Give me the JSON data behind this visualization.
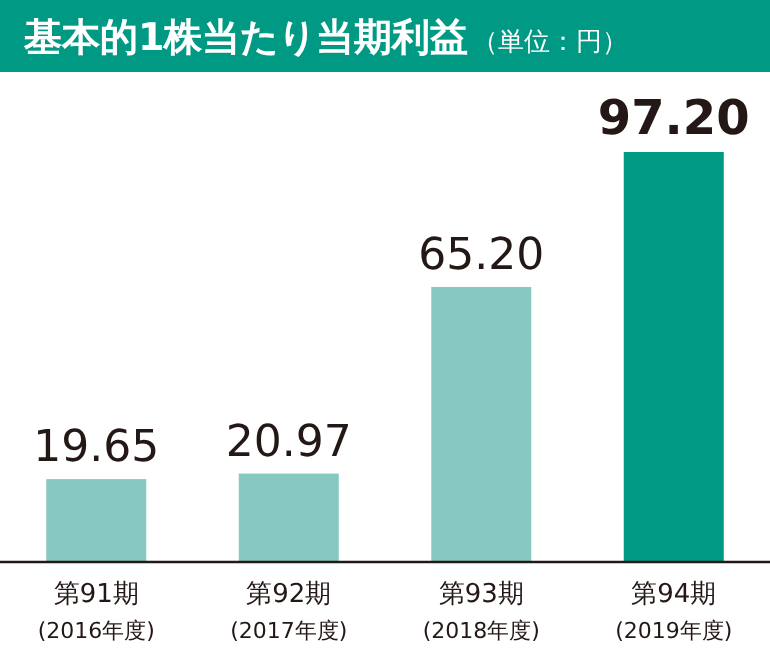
{
  "chart_data": {
    "type": "bar",
    "title": "基本的1株当たり当期利益",
    "subtitle": "（単位：円）",
    "categories": [
      "第91期\n(2016年度)",
      "第92期\n(2017年度)",
      "第93期\n(2018年度)",
      "第94期\n(2019年度)"
    ],
    "values": [
      19.65,
      20.97,
      65.2,
      97.2
    ],
    "value_labels": [
      "19.65",
      "20.97",
      "65.20",
      "97.20"
    ],
    "colors": [
      "#86c9c0",
      "#86c9c0",
      "#86c9c0",
      "#009984"
    ]
  }
}
